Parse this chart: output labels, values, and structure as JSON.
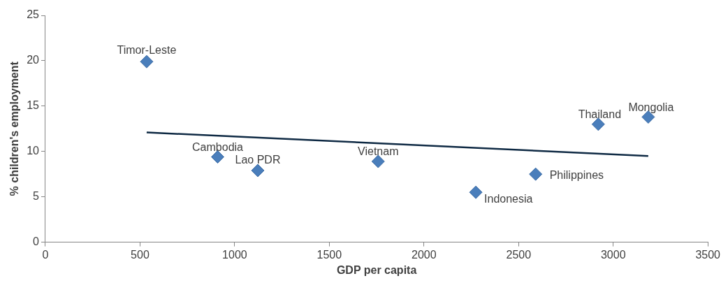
{
  "chart_data": {
    "type": "scatter",
    "xlabel": "GDP per capita",
    "ylabel": "% children's employment",
    "xlim": [
      0,
      3500
    ],
    "xticks": [
      0,
      500,
      1000,
      1500,
      2000,
      2500,
      3000,
      3500
    ],
    "ylim": [
      0,
      25
    ],
    "yticks": [
      0,
      5,
      10,
      15,
      20,
      25
    ],
    "grid": false,
    "legend": false,
    "marker": "diamond",
    "series": [
      {
        "type": "scatter",
        "color": "#4a7ebb",
        "x": [
          535,
          910,
          1122,
          1758,
          2274,
          2590,
          2921,
          3185
        ],
        "values": [
          19.9,
          9.4,
          7.9,
          8.9,
          5.5,
          7.5,
          13.0,
          13.8
        ]
      },
      {
        "type": "line",
        "color": "#0f2a44",
        "x": [
          535,
          3185
        ],
        "values": [
          12.1,
          9.5
        ],
        "marker": "none",
        "line_style": "solid"
      }
    ],
    "annotations": [
      {
        "text": "Timor-Leste",
        "x": 535,
        "y": 19.9
      },
      {
        "text": "Cambodia",
        "x": 910,
        "y": 9.4
      },
      {
        "text": "Lao PDR",
        "x": 1122,
        "y": 7.9
      },
      {
        "text": "Vietnam",
        "x": 1758,
        "y": 8.9
      },
      {
        "text": "Indonesia",
        "x": 2274,
        "y": 5.5
      },
      {
        "text": "Philippines",
        "x": 2590,
        "y": 7.5
      },
      {
        "text": "Thailand",
        "x": 2921,
        "y": 13.0
      },
      {
        "text": "Mongolia",
        "x": 3185,
        "y": 13.8
      }
    ]
  }
}
